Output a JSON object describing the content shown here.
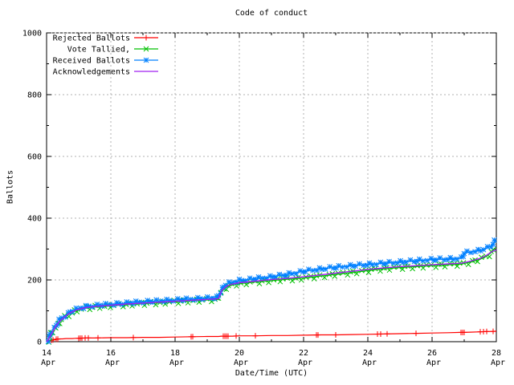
{
  "chart_data": {
    "type": "line",
    "title": "Code of conduct",
    "xlabel": "Date/Time (UTC)",
    "ylabel": "Ballots",
    "xlim": [
      14,
      28
    ],
    "ylim": [
      0,
      1000
    ],
    "grid": true,
    "legend_position": "top-left",
    "y_ticks": [
      0,
      200,
      400,
      600,
      800,
      1000
    ],
    "x_ticks": [
      {
        "value": 14,
        "lines": [
          "14",
          "Apr"
        ]
      },
      {
        "value": 16,
        "lines": [
          "16",
          "Apr"
        ]
      },
      {
        "value": 18,
        "lines": [
          "18",
          "Apr"
        ]
      },
      {
        "value": 20,
        "lines": [
          "20",
          "Apr"
        ]
      },
      {
        "value": 22,
        "lines": [
          "22",
          "Apr"
        ]
      },
      {
        "value": 24,
        "lines": [
          "24",
          "Apr"
        ]
      },
      {
        "value": 26,
        "lines": [
          "26",
          "Apr"
        ]
      },
      {
        "value": 28,
        "lines": [
          "28",
          "Apr"
        ]
      }
    ],
    "x_minor_step": 1,
    "y_minor_step": 100,
    "colors": {
      "red": "#ff0000",
      "green": "#00c000",
      "blue": "#0080ff",
      "purple": "#a020f0",
      "grid": "#b0b0b0",
      "axis": "#000000"
    },
    "x": [
      14,
      14.05,
      14.1,
      14.2,
      14.3,
      14.4,
      14.5,
      14.6,
      14.7,
      14.8,
      14.9,
      15,
      15.2,
      15.5,
      16,
      16.5,
      17,
      17.5,
      18,
      18.5,
      19,
      19.35,
      19.45,
      19.6,
      19.8,
      20,
      20.5,
      21,
      21.5,
      22,
      22.5,
      23,
      23.5,
      24,
      24.5,
      25,
      25.5,
      26,
      26.5,
      26.9,
      27,
      27.2,
      27.5,
      27.7,
      27.85,
      28
    ],
    "series": [
      {
        "label": "Rejected Ballots",
        "color_key": "red",
        "marker": "plus",
        "marker_x": [
          14.15,
          14.2,
          14.3,
          14.35,
          15,
          15.05,
          15.1,
          15.2,
          15.3,
          15.6,
          16.7,
          18.5,
          18.55,
          19.5,
          19.55,
          19.6,
          19.65,
          19.9,
          20.5,
          22.4,
          22.45,
          23,
          24.3,
          24.4,
          24.6,
          25.5,
          26.9,
          26.95,
          27,
          27.5,
          27.6,
          27.7,
          27.9
        ],
        "y": [
          0,
          1,
          3,
          6,
          8,
          9,
          9,
          10,
          10,
          10,
          11,
          11,
          12,
          12,
          13,
          13,
          14,
          14,
          15,
          16,
          17,
          17,
          18,
          18,
          18,
          19,
          19,
          20,
          20,
          21,
          22,
          22,
          23,
          24,
          25,
          26,
          27,
          28,
          29,
          30,
          30,
          31,
          32,
          33,
          33,
          34
        ]
      },
      {
        "label": "Vote Tallied,",
        "color_key": "green",
        "marker": "cross",
        "marker_spacing": 4.6,
        "jitter": 2.3,
        "y": [
          0,
          5,
          14,
          32,
          50,
          63,
          73,
          81,
          89,
          95,
          99,
          103,
          108,
          112,
          116,
          120,
          123,
          126,
          129,
          132,
          135,
          137,
          163,
          177,
          184,
          188,
          193,
          198,
          202,
          206,
          212,
          218,
          224,
          230,
          236,
          240,
          243,
          246,
          249,
          251,
          253,
          258,
          267,
          277,
          289,
          300
        ]
      },
      {
        "label": "Received Ballots",
        "color_key": "blue",
        "marker": "star",
        "marker_spacing": 4.2,
        "jitter": 1.7,
        "y": [
          0,
          8,
          18,
          38,
          55,
          68,
          78,
          86,
          94,
          100,
          104,
          108,
          113,
          117,
          121,
          125,
          129,
          132,
          135,
          138,
          141,
          143,
          172,
          186,
          193,
          198,
          204,
          210,
          218,
          228,
          235,
          241,
          246,
          250,
          254,
          258,
          262,
          266,
          268,
          270,
          287,
          291,
          296,
          302,
          312,
          330
        ]
      },
      {
        "label": "Acknowledgements",
        "color_key": "purple",
        "marker": "none",
        "y": [
          0,
          6,
          16,
          34,
          52,
          65,
          75,
          83,
          91,
          97,
          101,
          105,
          110,
          114,
          118,
          122,
          125,
          128,
          131,
          134,
          137,
          139,
          166,
          180,
          187,
          191,
          196,
          201,
          205,
          210,
          216,
          222,
          228,
          234,
          239,
          243,
          246,
          249,
          252,
          254,
          256,
          261,
          270,
          280,
          291,
          298
        ]
      }
    ]
  }
}
